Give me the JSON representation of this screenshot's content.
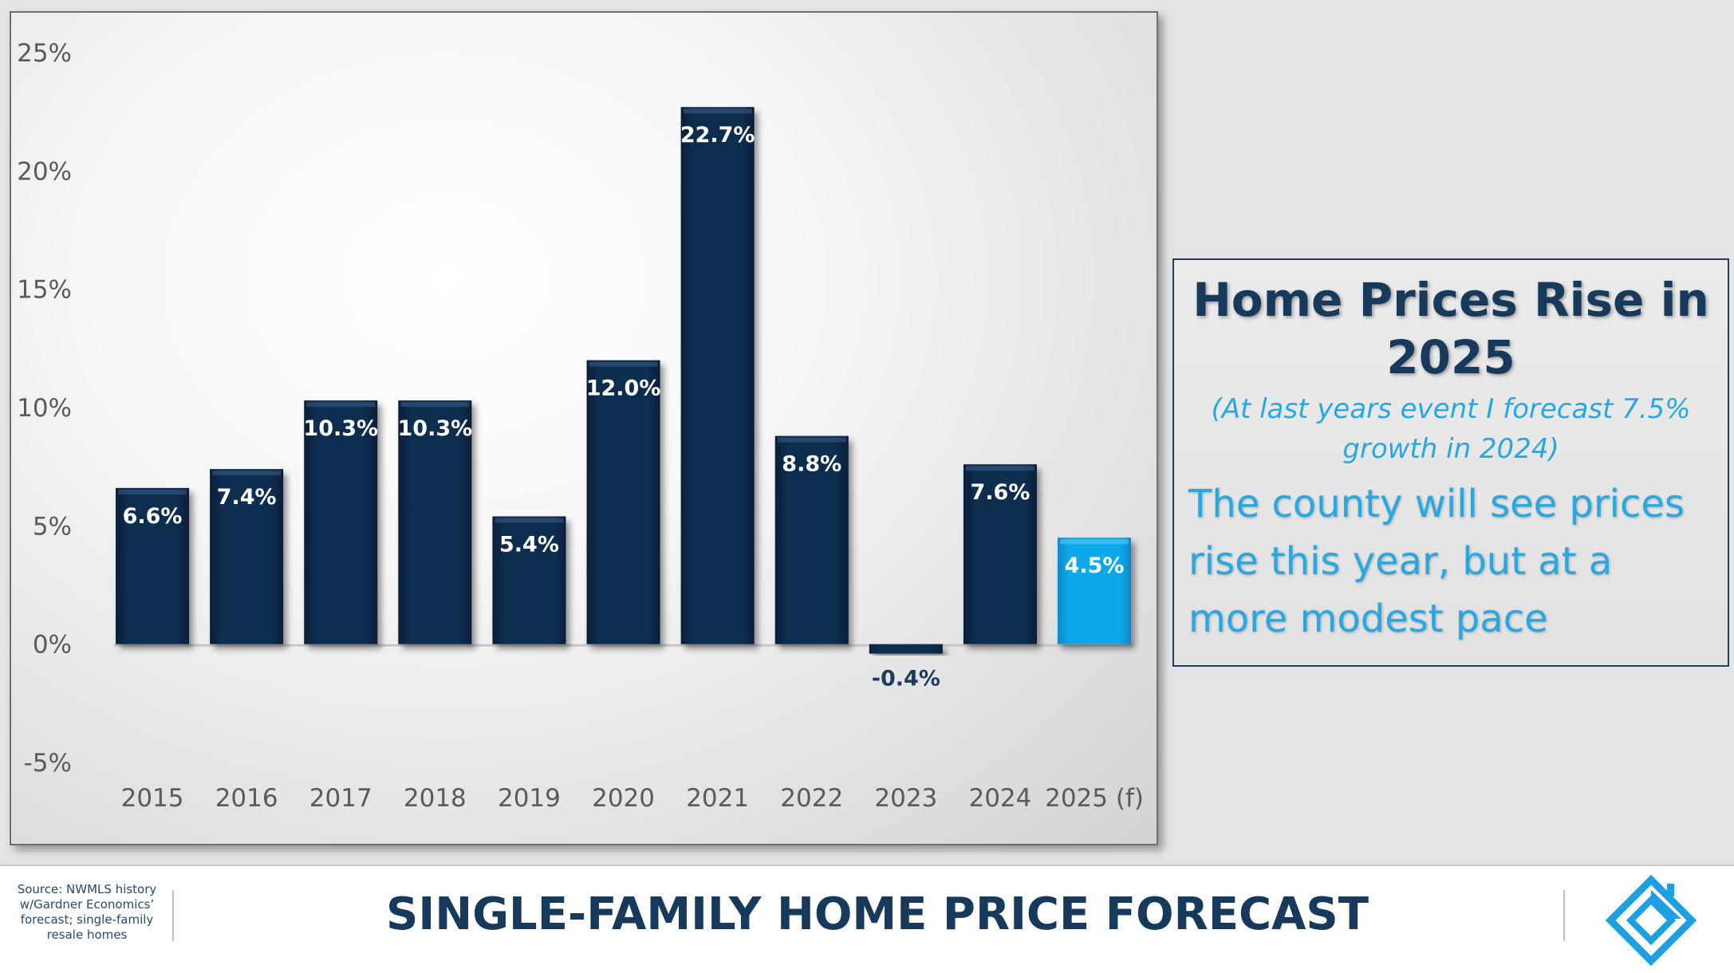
{
  "chart_data": {
    "type": "bar",
    "categories": [
      "2015",
      "2016",
      "2017",
      "2018",
      "2019",
      "2020",
      "2021",
      "2022",
      "2023",
      "2024",
      "2025 (f)"
    ],
    "values": [
      6.6,
      7.4,
      10.3,
      10.3,
      5.4,
      12.0,
      22.7,
      8.8,
      -0.4,
      7.6,
      4.5
    ],
    "data_labels": [
      "6.6%",
      "7.4%",
      "10.3%",
      "10.3%",
      "5.4%",
      "12.0%",
      "22.7%",
      "8.8%",
      "-0.4%",
      "7.6%",
      "4.5%"
    ],
    "y_ticks": [
      25,
      20,
      15,
      10,
      5,
      0,
      -5
    ],
    "y_tick_labels": [
      "25%",
      "20%",
      "15%",
      "10%",
      "5%",
      "0%",
      "-5%"
    ],
    "ylim": [
      -5,
      25
    ],
    "gridlines": false,
    "legend": "none",
    "colors": {
      "actual": "#0e2d50",
      "forecast": "#0ea5e8",
      "negative_label": "#1e3a5c"
    }
  },
  "callout": {
    "title": "Home Prices Rise in 2025",
    "note": "(At last years event I forecast 7.5% growth in 2024)",
    "body": "The county will see prices rise this year, but at a more modest pace"
  },
  "footer": {
    "source": "Source: NWMLS history w/Gardner Economics’ forecast; single-family resale homes",
    "title": "SINGLE-FAMILY HOME PRICE FORECAST",
    "logo": "gardner-economics-logo-icon"
  }
}
